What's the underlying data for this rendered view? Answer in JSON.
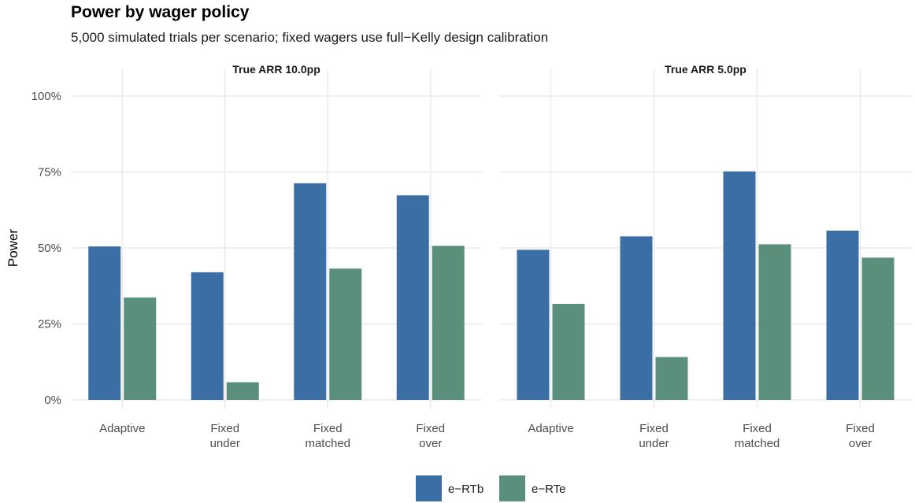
{
  "chart_data": {
    "type": "bar",
    "title": "Power by wager policy",
    "subtitle": "5,000 simulated trials per scenario; fixed wagers use full−Kelly design calibration",
    "ylabel": "Power",
    "xlabel": "",
    "ylim": [
      0,
      1
    ],
    "yticks": [
      0,
      0.25,
      0.5,
      0.75,
      1.0
    ],
    "ytick_labels": [
      "0%",
      "25%",
      "50%",
      "75%",
      "100%"
    ],
    "grid": true,
    "legend_position": "bottom",
    "colors": {
      "e-RTb": "#3b6ea5",
      "e-RTe": "#5a8f7b"
    },
    "categories": [
      {
        "line1": "Adaptive",
        "line2": ""
      },
      {
        "line1": "Fixed",
        "line2": "under"
      },
      {
        "line1": "Fixed",
        "line2": "matched"
      },
      {
        "line1": "Fixed",
        "line2": "over"
      }
    ],
    "legend": [
      "e−RTb",
      "e−RTe"
    ],
    "panels": [
      {
        "label": "True ARR 10.0pp",
        "series": [
          {
            "name": "e−RTb",
            "values": [
              0.505,
              0.42,
              0.713,
              0.673
            ]
          },
          {
            "name": "e−RTe",
            "values": [
              0.337,
              0.058,
              0.432,
              0.507
            ]
          }
        ]
      },
      {
        "label": "True ARR 5.0pp",
        "series": [
          {
            "name": "e−RTb",
            "values": [
              0.494,
              0.538,
              0.752,
              0.557
            ]
          },
          {
            "name": "e−RTe",
            "values": [
              0.316,
              0.141,
              0.512,
              0.468
            ]
          }
        ]
      }
    ]
  }
}
